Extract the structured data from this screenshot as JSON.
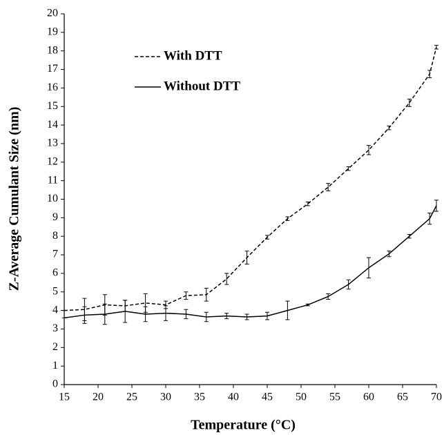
{
  "chart_data": {
    "type": "line",
    "x_label": "Temperature (°C)",
    "y_label": "Z-Average Cumulant Size (nm)",
    "x": [
      15,
      18,
      21,
      24,
      27,
      30,
      33,
      36,
      39,
      42,
      45,
      48,
      51,
      54,
      57,
      60,
      63,
      66,
      69,
      70
    ],
    "series": [
      {
        "name": "With DTT",
        "color": "#000000",
        "dash": "dashed",
        "values": [
          4.0,
          4.05,
          4.3,
          4.25,
          4.4,
          4.3,
          4.8,
          4.85,
          5.7,
          6.85,
          7.95,
          8.95,
          9.75,
          10.65,
          11.65,
          12.65,
          13.85,
          15.2,
          16.75,
          18.2
        ],
        "errors": [
          0,
          0.6,
          0.55,
          0.3,
          0.5,
          0.2,
          0.2,
          0.35,
          0.3,
          0.35,
          0.1,
          0.1,
          0.1,
          0.2,
          0.1,
          0.25,
          0.1,
          0.2,
          0.2,
          0.1
        ]
      },
      {
        "name": "Without DTT",
        "color": "#000000",
        "dash": "solid",
        "values": [
          3.6,
          3.75,
          3.8,
          3.95,
          3.8,
          3.85,
          3.8,
          3.65,
          3.7,
          3.65,
          3.7,
          4.0,
          4.3,
          4.75,
          5.4,
          6.3,
          7.05,
          8.0,
          8.95,
          9.65
        ],
        "errors": [
          0,
          0.45,
          0.55,
          0.6,
          0.4,
          0.4,
          0.25,
          0.25,
          0.15,
          0.15,
          0.2,
          0.5,
          0.05,
          0.15,
          0.25,
          0.55,
          0.15,
          0.1,
          0.3,
          0.3
        ]
      }
    ],
    "xlim": [
      15,
      70
    ],
    "xticks": [
      15,
      20,
      25,
      30,
      35,
      40,
      45,
      50,
      55,
      60,
      65,
      70
    ],
    "ylim": [
      0,
      20
    ],
    "yticks": [
      0,
      1,
      2,
      3,
      4,
      5,
      6,
      7,
      8,
      9,
      10,
      11,
      12,
      13,
      14,
      15,
      16,
      17,
      18,
      19,
      20
    ],
    "legend": "upper left",
    "grid": false
  }
}
